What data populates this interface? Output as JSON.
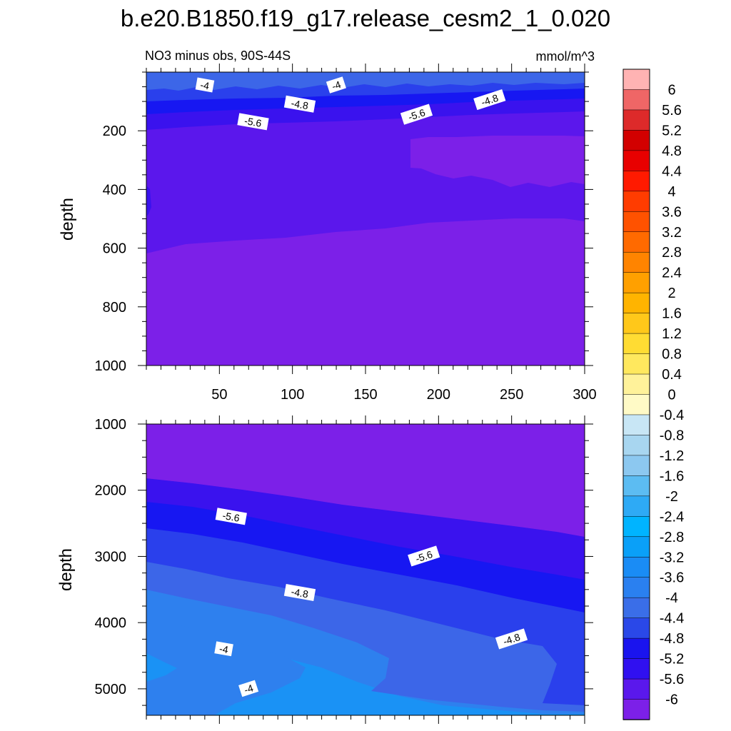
{
  "figure": {
    "title": "b.e20.B1850.f19_g17.release_cesm2_1_0.020"
  },
  "chart_data": [
    {
      "type": "contour",
      "panel": "top",
      "title": "NO3 minus obs, 90S-44S",
      "units": "mmol/m^3",
      "xlabel": "",
      "ylabel": "depth",
      "xlim": [
        0,
        300
      ],
      "ylim": [
        1000,
        0
      ],
      "y_reversed": true,
      "xticks": [
        50,
        100,
        150,
        200,
        250,
        300
      ],
      "yticks": [
        200,
        400,
        600,
        800,
        1000
      ],
      "contour_labels": [
        {
          "text": "-4",
          "x": 40,
          "y": 45
        },
        {
          "text": "-4",
          "x": 130,
          "y": 45
        },
        {
          "text": "-4.8",
          "x": 105,
          "y": 110
        },
        {
          "text": "-4.8",
          "x": 235,
          "y": 95
        },
        {
          "text": "-5.6",
          "x": 73,
          "y": 170
        },
        {
          "text": "-5.6",
          "x": 185,
          "y": 145
        }
      ],
      "regions": [
        {
          "level": "-4.4 to -4",
          "color": "#3c66e8",
          "y_top": [
            30,
            30
          ],
          "y_bottom": [
            60,
            50
          ]
        },
        {
          "level": "-4.8 to -4.4",
          "color": "#2a40ec",
          "y_top": [
            60,
            50
          ],
          "y_bottom": [
            95,
            90
          ]
        },
        {
          "level": "-5.2 to -4.8",
          "color": "#1717f2",
          "y_top": [
            95,
            90
          ],
          "y_bottom": [
            140,
            130
          ]
        },
        {
          "level": "-5.6 to -5.2",
          "color": "#3a12ee",
          "y_top": [
            140,
            130
          ],
          "y_bottom": [
            190,
            180
          ]
        },
        {
          "level": "-6 to -5.6",
          "color": "#5b17ec",
          "y_top": [
            190,
            180
          ],
          "y_bottom": [
            620,
            510
          ]
        },
        {
          "level": "< -6",
          "color": "#7c20e8",
          "y_top": [
            620,
            510
          ],
          "y_bottom": [
            1000,
            1000
          ]
        }
      ]
    },
    {
      "type": "contour",
      "panel": "bottom",
      "title": "",
      "xlabel": "",
      "ylabel": "depth",
      "xlim": [
        0,
        300
      ],
      "ylim": [
        5400,
        1000
      ],
      "y_reversed": true,
      "yticks": [
        1000,
        2000,
        3000,
        4000,
        5000
      ],
      "contour_labels": [
        {
          "text": "-5.6",
          "x": 58,
          "y": 2400
        },
        {
          "text": "-5.6",
          "x": 190,
          "y": 3000
        },
        {
          "text": "-4.8",
          "x": 105,
          "y": 3550
        },
        {
          "text": "-4.8",
          "x": 250,
          "y": 4250
        },
        {
          "text": "-4",
          "x": 53,
          "y": 4400
        },
        {
          "text": "-4",
          "x": 70,
          "y": 5000
        }
      ],
      "regions": [
        {
          "level": "< -6",
          "color": "#7c20e8"
        },
        {
          "level": "-6 to -5.6",
          "color": "#5b17ec"
        },
        {
          "level": "-5.6 to -5.2",
          "color": "#3a12ee"
        },
        {
          "level": "-5.2 to -4.8",
          "color": "#1717f2"
        },
        {
          "level": "-4.8 to -4.4",
          "color": "#2a40ec"
        },
        {
          "level": "-4.4 to -4",
          "color": "#3c66e8"
        },
        {
          "level": "-4 to -3.6",
          "color": "#2e80ee"
        },
        {
          "level": "-3.6 to -3.2",
          "color": "#1a92f5"
        }
      ]
    }
  ],
  "colorbar": {
    "labels": [
      "6",
      "5.6",
      "5.2",
      "4.8",
      "4.4",
      "4",
      "3.6",
      "3.2",
      "2.8",
      "2.4",
      "2",
      "1.6",
      "1.2",
      "0.8",
      "0.4",
      "0",
      "-0.4",
      "-0.8",
      "-1.2",
      "-1.6",
      "-2",
      "-2.4",
      "-2.8",
      "-3.2",
      "-3.6",
      "-4",
      "-4.4",
      "-4.8",
      "-5.2",
      "-5.6",
      "-6"
    ],
    "colors": [
      "#ffb3b3",
      "#ef6666",
      "#dd2a2a",
      "#d20000",
      "#e80000",
      "#ff1a00",
      "#ff3c00",
      "#ff5200",
      "#ff6a00",
      "#ff8400",
      "#ffa000",
      "#ffb400",
      "#ffc81a",
      "#ffdc33",
      "#ffe85e",
      "#fff29a",
      "#fffac6",
      "#c8e6f5",
      "#a8d6f0",
      "#8cc8f0",
      "#5cbcf2",
      "#2eaaf5",
      "#00b4ff",
      "#0aa0f8",
      "#1a8cf5",
      "#2a80f0",
      "#3a6ee8",
      "#2a48e8",
      "#1a14ee",
      "#3010f0",
      "#5a18ec",
      "#7c20e8"
    ]
  }
}
